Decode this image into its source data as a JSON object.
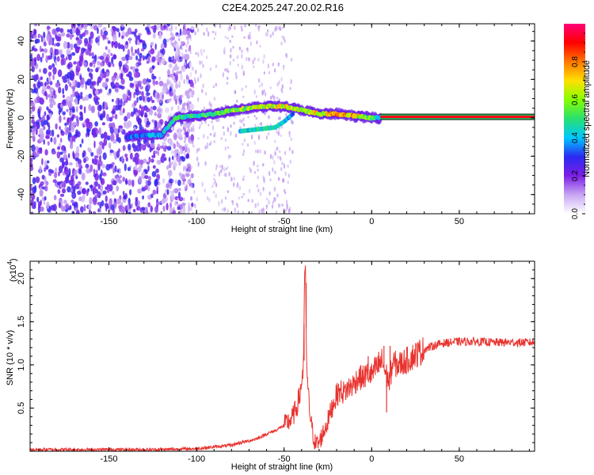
{
  "title": "C2E4.2025.247.20.02.R16",
  "chart_data": [
    {
      "type": "heatmap",
      "name": "spectrogram",
      "xlabel": "Height of straight line (km)",
      "ylabel": "Frequency (Hz)",
      "xlim": [
        -195,
        93
      ],
      "ylim": [
        -50,
        49
      ],
      "xticks": [
        -150,
        -100,
        -50,
        0,
        50
      ],
      "xtick_labels": [
        "-150",
        "-100",
        "-50",
        "0",
        "50"
      ],
      "yticks": [
        -40,
        -20,
        0,
        20,
        40
      ],
      "ytick_labels": [
        "-40",
        "-20",
        "0",
        "20",
        "40"
      ],
      "colorbar": {
        "label": "Normalized spectral amplitude",
        "range": [
          0,
          1
        ],
        "ticks": [
          0.0,
          0.2,
          0.4,
          0.6,
          0.8
        ],
        "tick_labels": [
          "0.0",
          "0.2",
          "0.4",
          "0.6",
          "0.8"
        ],
        "colors": [
          "#ffffff",
          "#c7a6f2",
          "#7d1fe6",
          "#2a2af0",
          "#00c8ff",
          "#28e070",
          "#86ff00",
          "#ffe000",
          "#ff7800",
          "#ff0000",
          "#ff0078"
        ]
      },
      "carrier": {
        "x_start": 5,
        "x_end": 93,
        "frequency": 0.5,
        "amplitude": 0.92
      },
      "track": {
        "x": [
          -140,
          -130,
          -120,
          -112,
          -100,
          -90,
          -80,
          -70,
          -60,
          -50,
          -40,
          -30,
          -20,
          -10,
          0,
          5
        ],
        "frequency": [
          -10,
          -9,
          -9,
          0,
          1,
          2,
          4,
          5,
          6,
          6,
          4,
          2,
          2,
          1,
          0,
          0
        ],
        "amplitude": [
          0.35,
          0.4,
          0.45,
          0.55,
          0.55,
          0.6,
          0.65,
          0.7,
          0.75,
          0.75,
          0.7,
          0.75,
          0.85,
          0.8,
          0.6,
          0.5
        ]
      },
      "secondary_track": {
        "x": [
          -75,
          -65,
          -55,
          -50,
          -45
        ],
        "frequency": [
          -7,
          -6,
          -5,
          -2,
          2
        ],
        "amplitude": [
          0.45,
          0.5,
          0.5,
          0.45,
          0.4
        ]
      },
      "noise_region": [
        -195,
        -110
      ]
    },
    {
      "type": "line",
      "name": "snr",
      "xlabel": "Height of straight line (km)",
      "ylabel": "SNR (10 * v/v)",
      "scale_label": "(x10",
      "scale_exponent": "4",
      "scale_close": ")",
      "xlim": [
        -195,
        93
      ],
      "ylim": [
        0,
        2.2
      ],
      "xticks": [
        -150,
        -100,
        -50,
        0,
        50
      ],
      "xtick_labels": [
        "-150",
        "-100",
        "-50",
        "0",
        "50"
      ],
      "yticks": [
        0.5,
        1.0,
        1.5,
        2.0
      ],
      "ytick_labels": [
        "0.5",
        "1.0",
        "1.5",
        "2.0"
      ],
      "series": [
        {
          "name": "SNR",
          "color": "#e8322e",
          "x": [
            -195,
            -150,
            -120,
            -100,
            -90,
            -80,
            -75,
            -70,
            -65,
            -60,
            -55,
            -50,
            -47,
            -45,
            -43,
            -41,
            -40,
            -39,
            -38,
            -37,
            -36,
            -35,
            -34,
            -33,
            -32,
            -30,
            -28,
            -25,
            -22,
            -20,
            -18,
            -16,
            -14,
            -12,
            -10,
            -8,
            -5,
            -2,
            0,
            2,
            4,
            6,
            8,
            10,
            12,
            15,
            20,
            25,
            30,
            35,
            40,
            50,
            60,
            70,
            80,
            93
          ],
          "y": [
            0.02,
            0.02,
            0.02,
            0.03,
            0.05,
            0.07,
            0.1,
            0.12,
            0.15,
            0.2,
            0.24,
            0.3,
            0.35,
            0.4,
            0.5,
            0.65,
            0.8,
            1.0,
            2.2,
            0.9,
            0.6,
            0.4,
            0.25,
            0.15,
            0.08,
            0.1,
            0.2,
            0.35,
            0.55,
            0.65,
            0.7,
            0.68,
            0.72,
            0.75,
            0.78,
            0.85,
            0.85,
            0.9,
            0.88,
            0.95,
            0.98,
            1.05,
            0.9,
            0.8,
            1.02,
            1.0,
            1.05,
            1.12,
            1.18,
            1.22,
            1.25,
            1.27,
            1.27,
            1.26,
            1.26,
            1.26
          ],
          "noise": 0.03,
          "spikes": [
            {
              "x": -38,
              "y": 2.2
            },
            {
              "x": -37.4,
              "y": 1.95
            },
            {
              "x": -38.6,
              "y": 1.05
            },
            {
              "x": 7,
              "y": 1.22
            },
            {
              "x": 8.5,
              "y": 0.45
            },
            {
              "x": 10.5,
              "y": 1.22
            },
            {
              "x": -2,
              "y": 1.1
            },
            {
              "x": 4,
              "y": 1.15
            }
          ]
        }
      ]
    }
  ]
}
